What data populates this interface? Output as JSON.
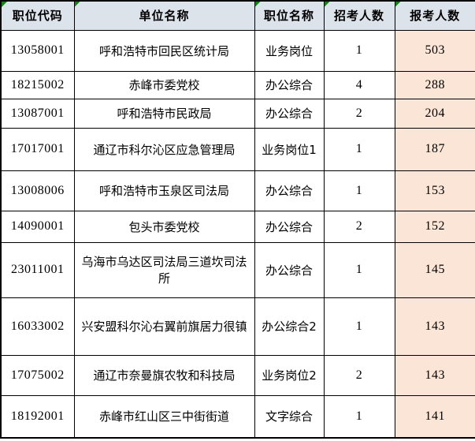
{
  "table": {
    "columns": [
      {
        "label": "职位代码"
      },
      {
        "label": "单位名称"
      },
      {
        "label": "职位名称"
      },
      {
        "label": "招考人数"
      },
      {
        "label": "报考人数"
      }
    ],
    "rows": [
      {
        "code": "13058001",
        "unit": "呼和浩特市回民区统计局",
        "position": "业务岗位",
        "recruit": "1",
        "applicants": "503"
      },
      {
        "code": "18215002",
        "unit": "赤峰市委党校",
        "position": "办公综合",
        "recruit": "4",
        "applicants": "288"
      },
      {
        "code": "13087001",
        "unit": "呼和浩特市民政局",
        "position": "办公综合",
        "recruit": "2",
        "applicants": "204"
      },
      {
        "code": "17017001",
        "unit": "通辽市科尔沁区应急管理局",
        "position": "业务岗位1",
        "recruit": "1",
        "applicants": "187"
      },
      {
        "code": "13008006",
        "unit": "呼和浩特市玉泉区司法局",
        "position": "办公综合",
        "recruit": "1",
        "applicants": "153"
      },
      {
        "code": "14090001",
        "unit": "包头市委党校",
        "position": "办公综合",
        "recruit": "2",
        "applicants": "152"
      },
      {
        "code": "23011001",
        "unit": "乌海市乌达区司法局三道坎司法所",
        "position": "办公综合",
        "recruit": "1",
        "applicants": "145"
      },
      {
        "code": "16033002",
        "unit": "兴安盟科尔沁右翼前旗居力很镇",
        "position": "办公综合2",
        "recruit": "1",
        "applicants": "143"
      },
      {
        "code": "17075002",
        "unit": "通辽市奈曼旗农牧和科技局",
        "position": "业务岗位2",
        "recruit": "2",
        "applicants": "143"
      },
      {
        "code": "18192001",
        "unit": "赤峰市红山区三中街街道",
        "position": "文字综合",
        "recruit": "1",
        "applicants": "141"
      }
    ],
    "colors": {
      "header_bg": "#dce3eb",
      "applicants_bg": "#fbe5d6",
      "border": "#000000",
      "comment_indicator": "#188018"
    },
    "icons": {
      "comment_indicator": "comment-indicator-icon"
    }
  }
}
